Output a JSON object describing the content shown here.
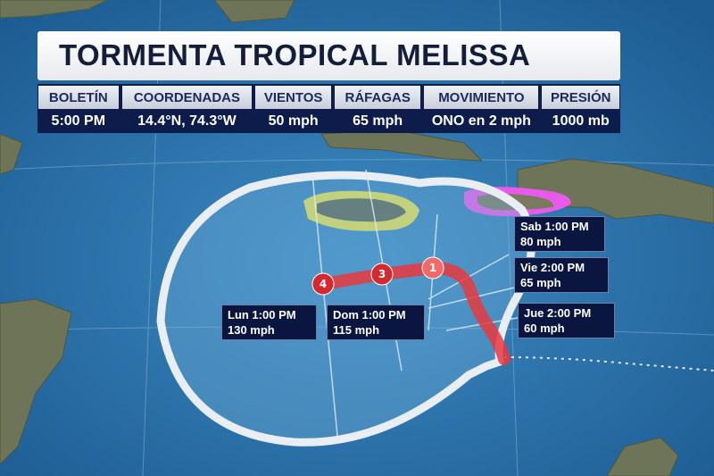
{
  "title": "TORMENTA TROPICAL MELISSA",
  "info_table": {
    "columns": [
      {
        "header": "BOLETÍN",
        "value": "5:00 PM"
      },
      {
        "header": "COORDENADAS",
        "value": "14.4°N, 74.3°W"
      },
      {
        "header": "VIENTOS",
        "value": "50 mph"
      },
      {
        "header": "RÁFAGAS",
        "value": "65 mph"
      },
      {
        "header": "MOVIMIENTO",
        "value": "ONO en 2 mph"
      },
      {
        "header": "PRESIÓN",
        "value": "1000 mb"
      }
    ]
  },
  "forecast_labels": [
    {
      "time": "Sab 1:00 PM",
      "wind": "80 mph"
    },
    {
      "time": "Vie 2:00 PM",
      "wind": "65 mph"
    },
    {
      "time": "Jue 2:00 PM",
      "wind": "60 mph"
    },
    {
      "time": "Lun 1:00 PM",
      "wind": "130 mph"
    },
    {
      "time": "Dom 1:00 PM",
      "wind": "115 mph"
    }
  ],
  "storm_markers": [
    "4",
    "3",
    "1"
  ],
  "colors": {
    "ocean": "#2a6fa6",
    "land": "#6d7458",
    "track": "#e8383d",
    "hurricane_watch": "#e8e04a",
    "hurricane_warning": "#e85ae8",
    "label_bg": "#0b1640",
    "title_text": "#141e3a"
  }
}
